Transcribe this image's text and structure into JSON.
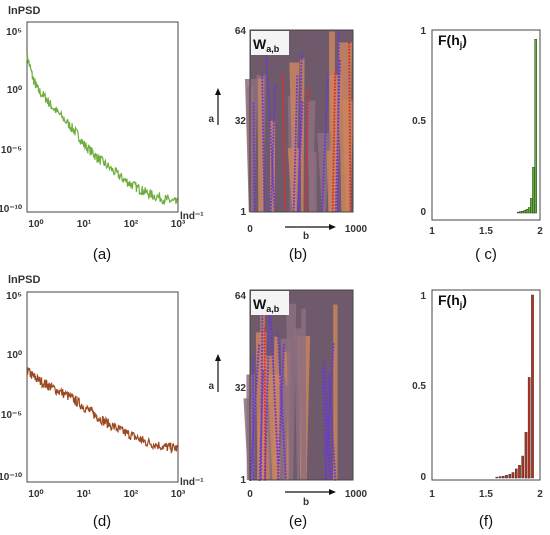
{
  "colors": {
    "green": "#6fae3d",
    "green_dark": "#3d7a1e",
    "red": "#a8421f",
    "red_dark": "#5a1c0c",
    "purple": "#6a3bd1",
    "scalogram_base": "#6e5a6a",
    "scalogram_warm": "#c9855e"
  },
  "chart_data": [
    {
      "id": "a",
      "type": "line",
      "panel_label": "(a)",
      "ylabel": "lnPSD",
      "xlabel": "lnd⁻¹",
      "xscale": "log",
      "yscale": "log",
      "xlim": [
        0.6,
        1000
      ],
      "ylim": [
        1e-11,
        1000000.0
      ],
      "xticks": [
        "10⁰",
        "10¹",
        "10²",
        "10³"
      ],
      "yticks": [
        "10⁵",
        "10⁰",
        "10⁻⁵",
        "10⁻¹⁰"
      ],
      "series": [
        {
          "color": "#6fae3d",
          "x": [
            0.6,
            0.8,
            1,
            1.5,
            2,
            3,
            5,
            7,
            10,
            15,
            20,
            30,
            50,
            70,
            100,
            150,
            200,
            300,
            500,
            700,
            1000
          ],
          "y": [
            1000.0,
            10,
            1,
            0.15,
            0.03,
            0.005,
            0.0005,
            0.0001,
            1e-05,
            2e-06,
            6e-07,
            1.5e-07,
            2.5e-08,
            8e-09,
            3e-09,
            1.2e-09,
            6e-10,
            3e-10,
            1.5e-10,
            1e-10,
            6e-11
          ]
        }
      ]
    },
    {
      "id": "b",
      "type": "heatmap",
      "panel_label": "(b)",
      "title": "W",
      "title_sub": "a,b",
      "ylabel": "a",
      "xlabel": "b",
      "xlim": [
        0,
        1000
      ],
      "ylim": [
        1,
        64
      ],
      "xticks": [
        "0",
        "1000"
      ],
      "yticks": [
        "1",
        "32",
        "64"
      ]
    },
    {
      "id": "c",
      "type": "bar",
      "panel_label": "( c)",
      "title": "F(h",
      "title_sub": "j",
      "title_end": ")",
      "xlim": [
        1,
        2
      ],
      "ylim": [
        0,
        1
      ],
      "xticks": [
        "1",
        "1.5",
        "2"
      ],
      "yticks": [
        "0",
        "0.5",
        "1"
      ],
      "color": "#5fae3a",
      "x": [
        1.8,
        1.82,
        1.84,
        1.86,
        1.88,
        1.9,
        1.92,
        1.94,
        1.96
      ],
      "values": [
        0.005,
        0.008,
        0.01,
        0.015,
        0.02,
        0.03,
        0.08,
        0.25,
        0.95
      ]
    },
    {
      "id": "d",
      "type": "line",
      "panel_label": "(d)",
      "ylabel": "lnPSD",
      "xlabel": "lnd⁻¹",
      "xscale": "log",
      "yscale": "log",
      "xlim": [
        0.6,
        1000
      ],
      "ylim": [
        1e-11,
        1000000.0
      ],
      "xticks": [
        "10⁰",
        "10¹",
        "10²",
        "10³"
      ],
      "yticks": [
        "10⁵",
        "10⁰",
        "10⁻⁵",
        "10⁻¹⁰"
      ],
      "series": [
        {
          "color": "#9c4a22",
          "x": [
            0.6,
            0.8,
            1,
            1.5,
            2,
            3,
            5,
            7,
            10,
            15,
            20,
            30,
            50,
            70,
            100,
            150,
            200,
            300,
            500,
            700,
            1000
          ],
          "y": [
            0.1,
            0.03,
            0.015,
            0.006,
            0.003,
            0.0012,
            0.0004,
            0.00015,
            5e-05,
            1.5e-05,
            6e-06,
            2e-06,
            6e-07,
            3e-07,
            1.5e-07,
            7e-08,
            4e-08,
            2.5e-08,
            1.5e-08,
            1.2e-08,
            1e-08
          ]
        }
      ]
    },
    {
      "id": "e",
      "type": "heatmap",
      "panel_label": "(e)",
      "title": "W",
      "title_sub": "a,b",
      "ylabel": "a",
      "xlabel": "b",
      "xlim": [
        0,
        1000
      ],
      "ylim": [
        1,
        64
      ],
      "xticks": [
        "0",
        "1000"
      ],
      "yticks": [
        "1",
        "32",
        "64"
      ]
    },
    {
      "id": "f",
      "type": "bar",
      "panel_label": "(f)",
      "title": "F(h",
      "title_sub": "j",
      "title_end": ")",
      "xlim": [
        1,
        2
      ],
      "ylim": [
        0,
        1
      ],
      "xticks": [
        "1",
        "1.5",
        "2"
      ],
      "yticks": [
        "0",
        "0.5",
        "1"
      ],
      "color": "#b5321e",
      "x": [
        1.6,
        1.63,
        1.66,
        1.69,
        1.72,
        1.75,
        1.78,
        1.81,
        1.84,
        1.87,
        1.9,
        1.93
      ],
      "values": [
        0.005,
        0.008,
        0.01,
        0.015,
        0.02,
        0.03,
        0.05,
        0.07,
        0.12,
        0.25,
        0.55,
        1.0
      ]
    }
  ]
}
